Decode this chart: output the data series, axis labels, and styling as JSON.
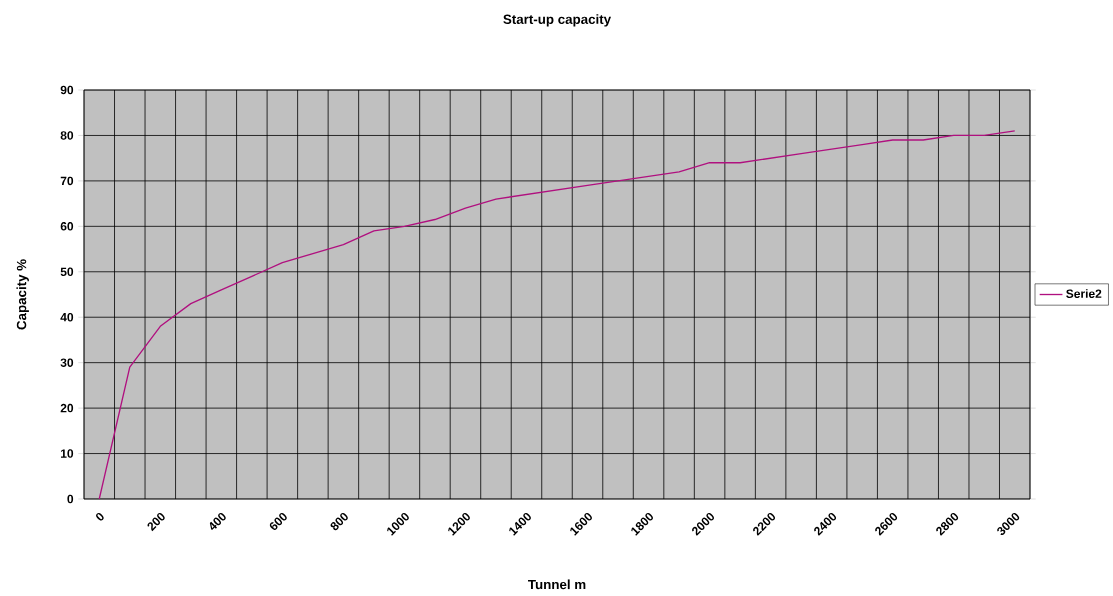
{
  "chart_data": {
    "type": "line",
    "title": "Start-up capacity",
    "xlabel": "Tunnel m",
    "ylabel": "Capacity %",
    "categories": [
      "0",
      null,
      "200",
      null,
      "400",
      null,
      "600",
      null,
      "800",
      null,
      "1000",
      null,
      "1200",
      null,
      "1400",
      null,
      "1600",
      null,
      "1800",
      null,
      "2000",
      null,
      "2200",
      null,
      "2400",
      null,
      "2600",
      null,
      "2800",
      null,
      "3000"
    ],
    "series": [
      {
        "name": "Serie2",
        "color": "#b0107f",
        "values": [
          0,
          29,
          38,
          43,
          46,
          49,
          52,
          54,
          56,
          59,
          60,
          61.5,
          64,
          66,
          67,
          68,
          69,
          70,
          71,
          72,
          74,
          74,
          75,
          76,
          77,
          78,
          79,
          79,
          80,
          80,
          81
        ]
      }
    ],
    "ylim": [
      0,
      90
    ],
    "yticks": [
      0,
      10,
      20,
      30,
      40,
      50,
      60,
      70,
      80,
      90
    ],
    "grid": true,
    "legend": "right",
    "marker": "none",
    "line_style": "solid"
  }
}
